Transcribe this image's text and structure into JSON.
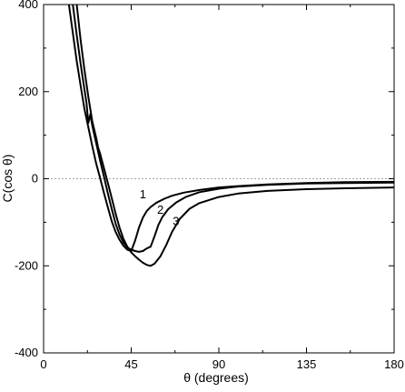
{
  "chart_data": {
    "type": "line",
    "title": "",
    "xlabel": "θ (degrees)",
    "ylabel": "C(cos θ)",
    "xlim": [
      0,
      180
    ],
    "ylim": [
      -400,
      400
    ],
    "xticks": [
      0,
      45,
      90,
      135,
      180
    ],
    "yticks": [
      400,
      200,
      0,
      -200,
      -400
    ],
    "xtick_labels": [
      "0",
      "45",
      "90",
      "135",
      "180"
    ],
    "ytick_labels": [
      "400",
      "200",
      "0",
      "-200",
      "-400"
    ],
    "grid": false,
    "reference_line": {
      "y": 0,
      "style": "dashed",
      "color": "#888888"
    },
    "series": [
      {
        "name": "1",
        "label_at": [
          51,
          -45
        ],
        "x": [
          13,
          15,
          17,
          19,
          21,
          23,
          25,
          27,
          29,
          31,
          33,
          35,
          37,
          39,
          41,
          43,
          45,
          47,
          49,
          51,
          53,
          55,
          58,
          62,
          66,
          72,
          80,
          90,
          100,
          115,
          135,
          155,
          180
        ],
        "y": [
          400,
          335,
          270,
          215,
          160,
          118,
          75,
          35,
          2,
          -33,
          -66,
          -98,
          -122,
          -140,
          -154,
          -163,
          -166,
          -142,
          -112,
          -89,
          -74,
          -65,
          -55,
          -46,
          -39,
          -32,
          -26,
          -20,
          -17,
          -13,
          -10,
          -8,
          -7
        ]
      },
      {
        "name": "2",
        "label_at": [
          60,
          -80
        ],
        "x": [
          15,
          17,
          19,
          21,
          22,
          23,
          24,
          25,
          27,
          29,
          31,
          33,
          35,
          37,
          39,
          41,
          43,
          45,
          47,
          49,
          51,
          53,
          55,
          57,
          59,
          61,
          64,
          68,
          73,
          80,
          90,
          100,
          115,
          135,
          155,
          180
        ],
        "y": [
          400,
          330,
          265,
          205,
          175,
          128,
          148,
          122,
          82,
          42,
          5,
          -34,
          -70,
          -103,
          -128,
          -146,
          -158,
          -163,
          -166,
          -168,
          -166,
          -160,
          -156,
          -132,
          -106,
          -88,
          -70,
          -55,
          -42,
          -31,
          -23,
          -18,
          -14,
          -11,
          -10,
          -9
        ]
      },
      {
        "name": "3",
        "label_at": [
          68,
          -107
        ],
        "x": [
          17,
          19,
          21,
          23,
          25,
          27,
          28,
          29,
          31,
          33,
          35,
          37,
          39,
          41,
          43,
          45,
          47,
          49,
          51,
          53,
          55,
          57,
          60,
          63,
          66,
          70,
          75,
          80,
          90,
          100,
          115,
          135,
          155,
          180
        ],
        "y": [
          400,
          320,
          250,
          188,
          132,
          94,
          72,
          58,
          24,
          -10,
          -45,
          -80,
          -112,
          -138,
          -156,
          -169,
          -178,
          -186,
          -193,
          -198,
          -200,
          -195,
          -178,
          -152,
          -122,
          -92,
          -69,
          -56,
          -42,
          -34,
          -28,
          -24,
          -22,
          -20
        ]
      }
    ]
  }
}
